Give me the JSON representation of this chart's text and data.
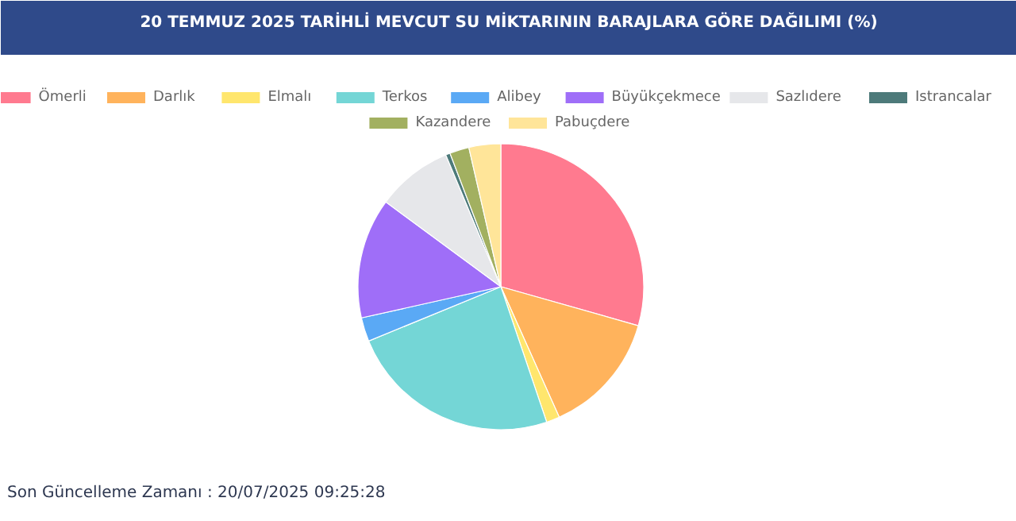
{
  "chart_data": {
    "type": "pie",
    "title": "20 TEMMUZ 2025 TARİHLİ MEVCUT SU MİKTARININ BARAJLARA GÖRE DAĞILIMI (%)",
    "categories": [
      "Ömerli",
      "Darlık",
      "Elmalı",
      "Terkos",
      "Alibey",
      "Büyükçekmece",
      "Sazlıdere",
      "Istrancalar",
      "Kazandere",
      "Pabuçdere"
    ],
    "values": [
      29.4,
      13.9,
      1.5,
      24.0,
      2.7,
      13.6,
      8.6,
      0.5,
      2.2,
      3.6
    ],
    "colors": [
      "#ff7a8f",
      "#ffb35c",
      "#ffe66d",
      "#74d6d6",
      "#5aa9f5",
      "#9f6ef8",
      "#e6e7ea",
      "#4d7a7a",
      "#a2b060",
      "#ffe599"
    ],
    "legend": "top",
    "annotations": [
      "Son Güncelleme Zamanı : 20/07/2025 09:25:28"
    ]
  }
}
